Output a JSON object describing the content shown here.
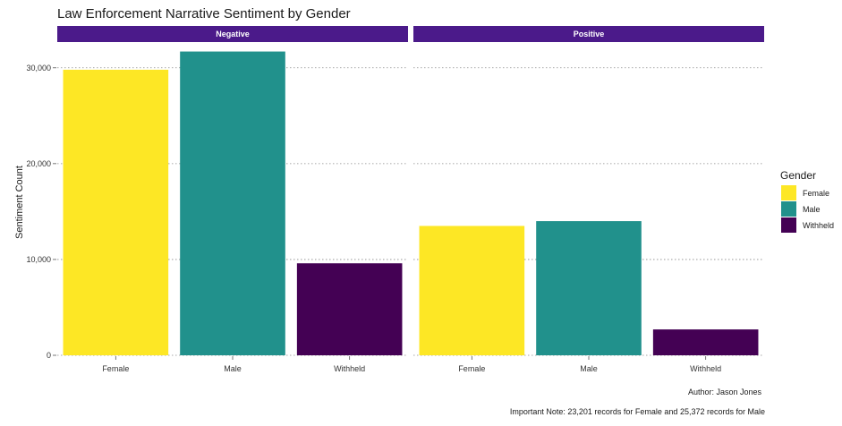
{
  "chart_data": {
    "type": "bar",
    "title": "Law Enforcement Narrative Sentiment by Gender",
    "ylabel": "Sentiment Count",
    "xlabel": "",
    "ylim": [
      0,
      32500
    ],
    "yticks": [
      0,
      10000,
      20000,
      30000
    ],
    "ytick_labels": [
      "0",
      "10,000",
      "20,000",
      "30,000"
    ],
    "facets": [
      "Negative",
      "Positive"
    ],
    "categories": [
      "Female",
      "Male",
      "Withheld"
    ],
    "panels": [
      {
        "facet": "Negative",
        "values": [
          29800,
          31700,
          9600
        ]
      },
      {
        "facet": "Positive",
        "values": [
          13500,
          14000,
          2700
        ]
      }
    ],
    "legend": {
      "title": "Gender",
      "position": "right",
      "entries": [
        {
          "label": "Female",
          "color": "#fde725"
        },
        {
          "label": "Male",
          "color": "#21918c"
        },
        {
          "label": "Withheld",
          "color": "#440154"
        }
      ]
    },
    "strip_color": "#4b1a8a",
    "grid": "horizontal-dotted",
    "captions": [
      "Author: Jason Jones",
      "Important Note: 23,201 records for Female and 25,372 records for Male"
    ]
  }
}
